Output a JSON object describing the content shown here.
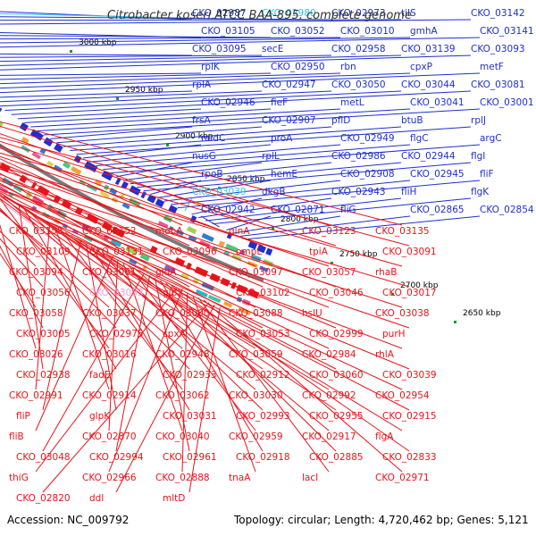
{
  "title": "Citrobacter koseri ATCC BAA-895, complete genome",
  "footer": {
    "accession": "Accession: NC_009792",
    "summary": "Topology: circular; Length: 4,720,462 bp; Genes: 5,121"
  },
  "scale_ticks": [
    "3000 kbp",
    "2950 kbp",
    "2900 kbp",
    "2850 kbp",
    "2800 kbp",
    "2750 kbp",
    "2700 kbp",
    "2650 kbp"
  ],
  "colors": {
    "forward_strand": "#1f2fd0",
    "reverse_strand": "#e8141a",
    "highlight_forward": "#33c6ee",
    "highlight_reverse": "#f09bd6",
    "backbone": "#7a7a7a"
  },
  "forward_labels": [
    "CKO_02987",
    "CKO_02980",
    "CKO_02973",
    "tilS",
    "CKO_03142",
    "CKO_03105",
    "CKO_03052",
    "CKO_03010",
    "gmhA",
    "CKO_03141",
    "CKO_03095",
    "secE",
    "CKO_02958",
    "CKO_03139",
    "CKO_03093",
    "rplK",
    "CKO_02950",
    "rbn",
    "cpxP",
    "metF",
    "rplA",
    "CKO_02947",
    "CKO_03050",
    "CKO_03044",
    "CKO_03081",
    "CKO_02946",
    "fieF",
    "metL",
    "CKO_03041",
    "CKO_03001",
    "frsA",
    "CKO_02907",
    "pflD",
    "btuB",
    "rplJ",
    "nudC",
    "proA",
    "CKO_02949",
    "flgC",
    "argC",
    "nusG",
    "rplL",
    "CKO_02986",
    "CKO_02944",
    "flgI",
    "rpoB",
    "hemE",
    "CKO_02908",
    "CKO_02945",
    "fliF",
    "CKO_03039",
    "dkgB",
    "CKO_02943",
    "fliH",
    "flgK",
    "CKO_02942",
    "CKO_02871",
    "fliG",
    "CKO_02865",
    "CKO_02854"
  ],
  "reverse_labels": [
    "CKO_03158",
    "CKO_03152",
    "mobA",
    "glnA",
    "CKO_03123",
    "CKO_03135",
    "CKO_03109",
    "CKO_03131",
    "CKO_03096",
    "ompL",
    "tpiA",
    "CKO_03091",
    "CKO_03094",
    "CKO_03061",
    "gldA",
    "CKO_03097",
    "CKO_03057",
    "rhaB",
    "CKO_03056",
    "CKO_03033",
    "glpX",
    "CKO_03102",
    "CKO_03046",
    "CKO_03017",
    "CKO_03058",
    "CKO_03037",
    "CKO_03000",
    "CKO_03088",
    "hslU",
    "CKO_03038",
    "CKO_03005",
    "CKO_02975",
    "cpxA",
    "CKO_03053",
    "CKO_02999",
    "purH",
    "CKO_03026",
    "CKO_03016",
    "CKO_02948",
    "CKO_03059",
    "CKO_02984",
    "rhlA",
    "CKO_02938",
    "fadE",
    "CKO_02933",
    "CKO_02912",
    "CKO_03060",
    "CKO_03039",
    "CKO_02991",
    "CKO_02914",
    "CKO_03062",
    "CKO_03030",
    "CKO_02992",
    "CKO_02954",
    "fliP",
    "glpK",
    "CKO_03031",
    "CKO_02993",
    "CKO_02955",
    "CKO_02915",
    "fliB",
    "CKO_02870",
    "CKO_03040",
    "CKO_02959",
    "CKO_02917",
    "flgA",
    "CKO_03048",
    "CKO_02994",
    "CKO_02961",
    "CKO_02918",
    "CKO_02885",
    "CKO_02833",
    "thiG",
    "CKO_02966",
    "CKO_02888",
    "tnaA",
    "lacI",
    "CKO_02971",
    "CKO_02820",
    "ddl",
    "mltD"
  ]
}
